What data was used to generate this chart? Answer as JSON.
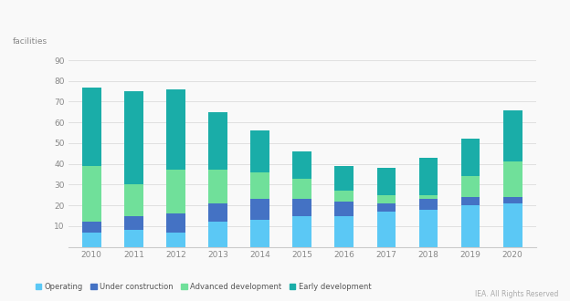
{
  "years": [
    2010,
    2011,
    2012,
    2013,
    2014,
    2015,
    2016,
    2017,
    2018,
    2019,
    2020
  ],
  "operating": [
    7,
    8,
    7,
    12,
    13,
    15,
    15,
    17,
    18,
    20,
    21
  ],
  "under_construction": [
    5,
    7,
    9,
    9,
    10,
    8,
    7,
    4,
    5,
    4,
    3
  ],
  "advanced_development": [
    27,
    15,
    21,
    16,
    13,
    10,
    5,
    4,
    2,
    10,
    17
  ],
  "early_development": [
    38,
    45,
    39,
    28,
    20,
    13,
    12,
    13,
    18,
    18,
    25
  ],
  "colors": {
    "operating": "#5bc8f5",
    "under_construction": "#4472c4",
    "advanced_development": "#70e09a",
    "early_development": "#1aada8"
  },
  "ylabel": "facilities",
  "ylim": [
    0,
    90
  ],
  "yticks": [
    0,
    10,
    20,
    30,
    40,
    50,
    60,
    70,
    80,
    90
  ],
  "background_color": "#f9f9f9",
  "grid_color": "#e0e0e0",
  "watermark": "IEA. All Rights Reserved"
}
